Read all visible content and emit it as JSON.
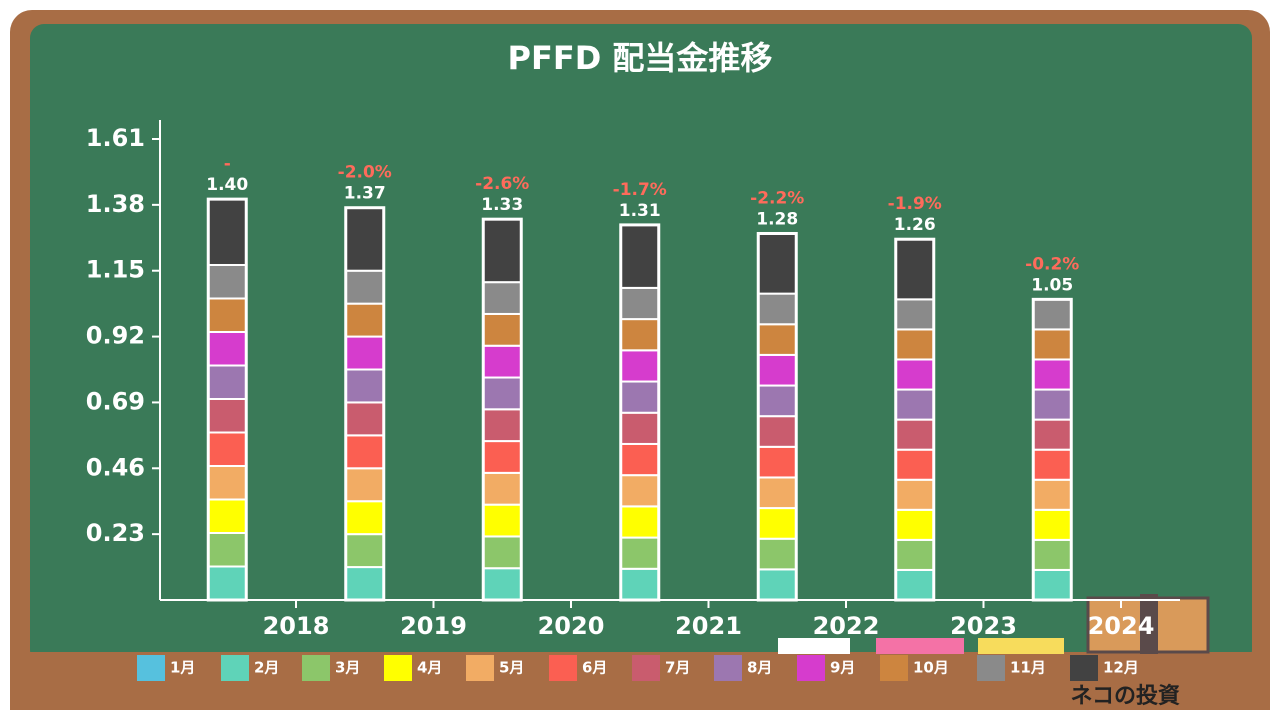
{
  "chart_data": {
    "type": "stacked_bar",
    "title": "PFFD 配当金推移",
    "categories": [
      "2018",
      "2019",
      "2020",
      "2021",
      "2022",
      "2023",
      "2024"
    ],
    "ylim": [
      0,
      1.61
    ],
    "yticks": [
      {
        "value": 0.23,
        "label": "0.23"
      },
      {
        "value": 0.46,
        "label": "0.46"
      },
      {
        "value": 0.69,
        "label": "0.69"
      },
      {
        "value": 0.92,
        "label": "0.92"
      },
      {
        "value": 1.15,
        "label": "1.15"
      },
      {
        "value": 1.38,
        "label": "1.38"
      },
      {
        "value": 1.61,
        "label": "1.61"
      }
    ],
    "total_labels": [
      "1.40",
      "1.37",
      "1.33",
      "1.31",
      "1.28",
      "1.26",
      "1.05"
    ],
    "change_labels": [
      "-",
      "-2.0%",
      "-2.6%",
      "-1.7%",
      "-2.2%",
      "-1.9%",
      "-0.2%"
    ],
    "series": [
      {
        "name": "1月",
        "color": "#56c1de",
        "values": [
          null,
          null,
          null,
          null,
          null,
          null,
          null
        ]
      },
      {
        "name": "2月",
        "color": "#5fd3b8",
        "values": [
          0.117,
          0.115,
          0.111,
          0.109,
          0.107,
          0.105,
          0.105
        ]
      },
      {
        "name": "3月",
        "color": "#8cc66a",
        "values": [
          0.117,
          0.115,
          0.111,
          0.109,
          0.107,
          0.105,
          0.105
        ]
      },
      {
        "name": "4月",
        "color": "#ffff00",
        "values": [
          0.117,
          0.115,
          0.111,
          0.109,
          0.107,
          0.105,
          0.105
        ]
      },
      {
        "name": "5月",
        "color": "#f2ac64",
        "values": [
          0.117,
          0.115,
          0.111,
          0.109,
          0.107,
          0.105,
          0.105
        ]
      },
      {
        "name": "6月",
        "color": "#fb5f52",
        "values": [
          0.117,
          0.115,
          0.111,
          0.109,
          0.107,
          0.105,
          0.105
        ]
      },
      {
        "name": "7月",
        "color": "#c95c6e",
        "values": [
          0.117,
          0.115,
          0.111,
          0.109,
          0.107,
          0.105,
          0.105
        ]
      },
      {
        "name": "8月",
        "color": "#9c77b0",
        "values": [
          0.117,
          0.115,
          0.111,
          0.109,
          0.107,
          0.105,
          0.105
        ]
      },
      {
        "name": "9月",
        "color": "#d63ccd",
        "values": [
          0.117,
          0.115,
          0.111,
          0.109,
          0.107,
          0.105,
          0.105
        ]
      },
      {
        "name": "10月",
        "color": "#cd853f",
        "values": [
          0.117,
          0.115,
          0.111,
          0.109,
          0.107,
          0.105,
          0.105
        ]
      },
      {
        "name": "11月",
        "color": "#8a8a8a",
        "values": [
          0.117,
          0.115,
          0.111,
          0.109,
          0.107,
          0.105,
          0.105
        ]
      },
      {
        "name": "12月",
        "color": "#424242",
        "values": [
          0.23,
          0.22,
          0.22,
          0.22,
          0.21,
          0.21,
          null
        ]
      }
    ]
  },
  "brand": "ネコの投資"
}
